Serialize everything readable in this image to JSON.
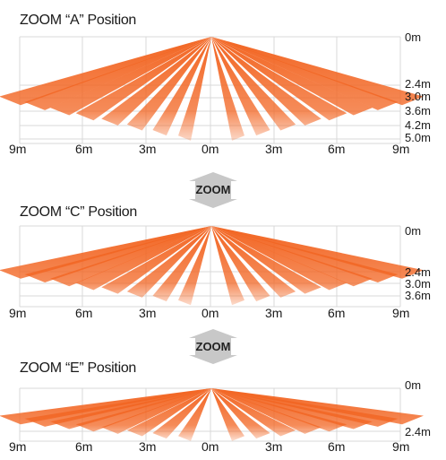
{
  "diagrams": [
    {
      "title": "ZOOM “A” Position",
      "x_ticks": [
        "9m",
        "6m",
        "3m",
        "0m",
        "3m",
        "6m",
        "9m"
      ],
      "distance_labels": [
        "0m",
        "2.4m",
        "3.0m",
        "3.6m",
        "4.2m",
        "5.0m"
      ],
      "distances_m": [
        0,
        2.4,
        3.0,
        3.6,
        4.2,
        5.0
      ]
    },
    {
      "title": "ZOOM “C” Position",
      "x_ticks": [
        "9m",
        "6m",
        "3m",
        "0m",
        "3m",
        "6m",
        "9m"
      ],
      "distance_labels": [
        "0m",
        "2.4m",
        "3.0m",
        "3.6m"
      ],
      "distances_m": [
        0,
        2.4,
        3.0,
        3.6
      ]
    },
    {
      "title": "ZOOM “E” Position",
      "x_ticks": [
        "9m",
        "6m",
        "3m",
        "0m",
        "3m",
        "6m",
        "9m"
      ],
      "distance_labels": [
        "0m",
        "2.4m"
      ],
      "distances_m": [
        0,
        2.4
      ]
    }
  ],
  "zoom_label": "ZOOM",
  "beam_color": "#f26522",
  "grid_color": "#d9d9d9",
  "arrow_color": "#c8c8c8"
}
